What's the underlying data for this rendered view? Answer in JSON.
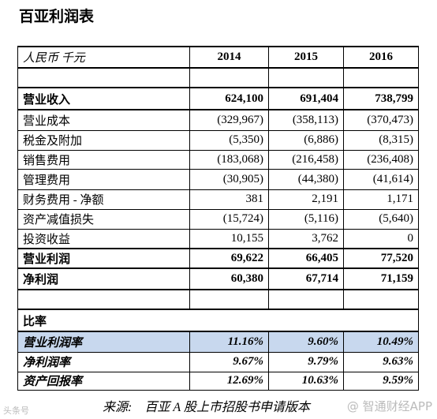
{
  "title": "百亚利润表",
  "table": {
    "header": [
      "人民币 千元",
      "2014",
      "2015",
      "2016"
    ],
    "rows": [
      [
        "营业收入",
        "624,100",
        "691,404",
        "738,799"
      ],
      [
        "营业成本",
        "(329,967)",
        "(358,113)",
        "(370,473)"
      ],
      [
        "税金及附加",
        "(5,350)",
        "(6,886)",
        "(8,315)"
      ],
      [
        "销售费用",
        "(183,068)",
        "(216,458)",
        "(236,408)"
      ],
      [
        "管理费用",
        "(30,905)",
        "(44,380)",
        "(41,614)"
      ],
      [
        "财务费用 - 净额",
        "381",
        "2,191",
        "1,171"
      ],
      [
        "资产减值损失",
        "(15,724)",
        "(5,116)",
        "(5,640)"
      ],
      [
        "投资收益",
        "10,155",
        "3,762",
        "0"
      ],
      [
        "营业利润",
        "69,622",
        "66,405",
        "77,520"
      ],
      [
        "净利润",
        "60,380",
        "67,714",
        "71,159"
      ]
    ],
    "ratio_heading": "比率",
    "ratio_rows": [
      [
        "营业利润率",
        "11.16%",
        "9.60%",
        "10.49%"
      ],
      [
        "净利润率",
        "9.67%",
        "9.79%",
        "9.63%"
      ],
      [
        "资产回报率",
        "12.69%",
        "10.63%",
        "9.59%"
      ]
    ]
  },
  "source": "来源:　百亚 A 股上市招股书申请版本",
  "watermark_left": "头条号",
  "watermark_right": "@ 智通财经APP"
}
